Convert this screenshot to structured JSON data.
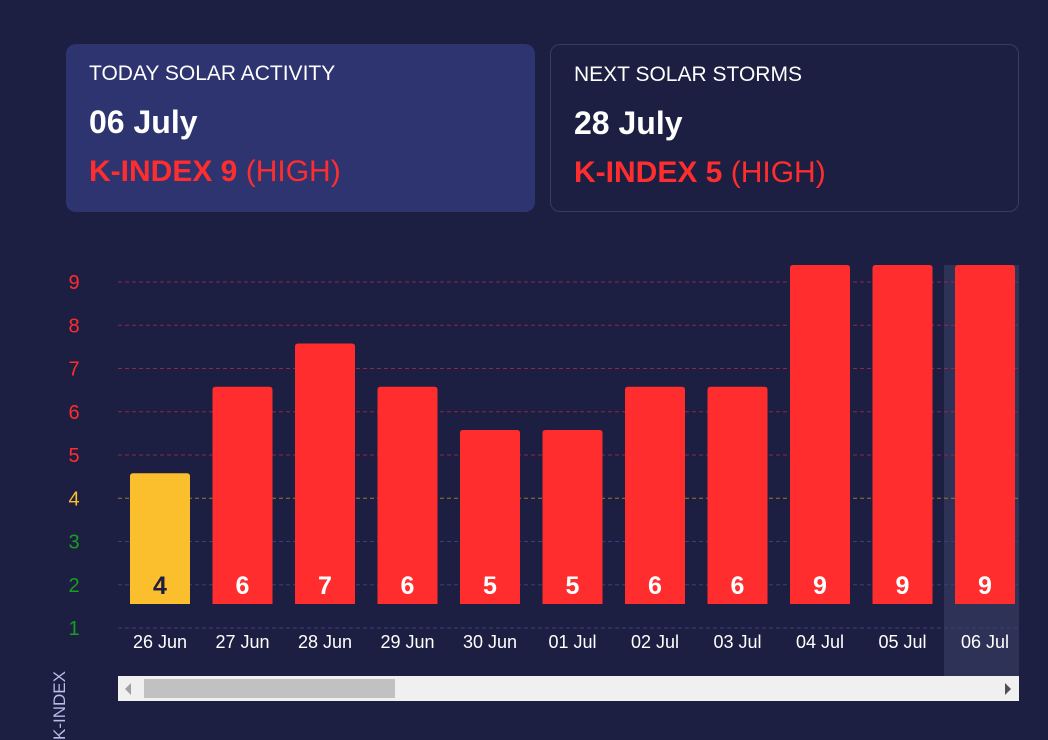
{
  "today": {
    "title": "TODAY SOLAR ACTIVITY",
    "date": "06 July",
    "k_label": "K-INDEX 9",
    "level": "(HIGH)"
  },
  "next": {
    "title": "NEXT SOLAR STORMS",
    "date": "28 July",
    "k_label": "K-INDEX 5",
    "level": "(HIGH)"
  },
  "colors": {
    "high": "#ff2d2d",
    "moderate": "#fbbf2d",
    "low": "#14a01e",
    "background": "#1c1f42",
    "highlight": "#2e3256"
  },
  "chart_data": {
    "type": "bar",
    "ylabel": "K-INDEX",
    "yticks": [
      1,
      2,
      3,
      4,
      5,
      6,
      7,
      8,
      9
    ],
    "categories": [
      "26 Jun",
      "27 Jun",
      "28 Jun",
      "29 Jun",
      "30 Jun",
      "01 Jul",
      "02 Jul",
      "03 Jul",
      "04 Jul",
      "05 Jul",
      "06 Jul"
    ],
    "values": [
      4,
      6,
      7,
      6,
      5,
      5,
      6,
      6,
      9,
      9,
      9
    ],
    "highlighted": "06 Jul",
    "grid": true
  }
}
